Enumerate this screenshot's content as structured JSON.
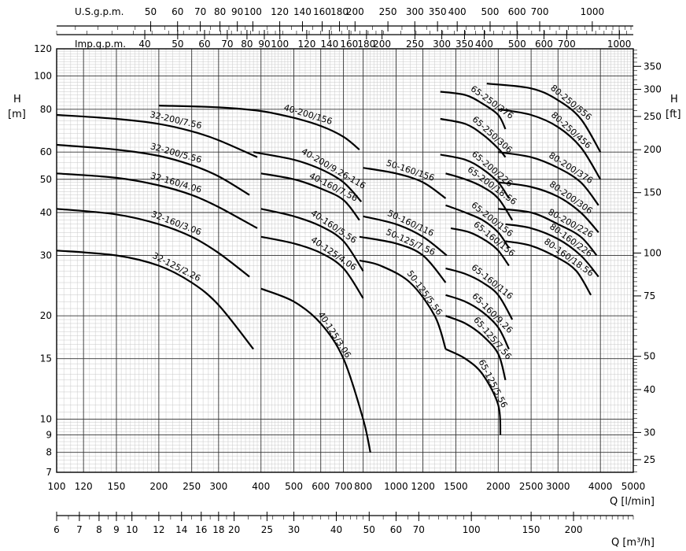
{
  "chart_data": {
    "type": "line",
    "title": "Pump performance curves",
    "x_axis": {
      "label": "Q [l/min]",
      "scale": "log",
      "range": [
        100,
        5000
      ],
      "ticks": [
        100,
        120,
        150,
        200,
        250,
        300,
        400,
        500,
        600,
        700,
        800,
        1000,
        1200,
        1500,
        2000,
        2500,
        3000,
        4000,
        5000
      ]
    },
    "x_axis_m3h": {
      "label": "Q [m³/h]",
      "ticks": [
        6,
        7,
        8,
        9,
        10,
        12,
        14,
        16,
        18,
        20,
        25,
        30,
        40,
        50,
        60,
        70,
        100,
        150,
        200
      ]
    },
    "x_axis_usgpm": {
      "label": "U.S.g.p.m.",
      "ticks": [
        50,
        60,
        70,
        80,
        90,
        100,
        120,
        140,
        160,
        180,
        200,
        250,
        300,
        350,
        400,
        500,
        600,
        700,
        1000
      ]
    },
    "x_axis_impgpm": {
      "label": "Imp.g.p.m.",
      "ticks": [
        40,
        50,
        60,
        70,
        80,
        90,
        100,
        120,
        140,
        160,
        180,
        200,
        250,
        300,
        350,
        400,
        500,
        600,
        700,
        1000
      ]
    },
    "y_axis": {
      "label": "H",
      "unit": "[m]",
      "scale": "log",
      "range": [
        7,
        120
      ],
      "ticks": [
        7,
        8,
        9,
        10,
        15,
        20,
        30,
        40,
        50,
        60,
        80,
        100,
        120
      ]
    },
    "y_axis_ft": {
      "label": "H",
      "unit": "[ft]",
      "ticks": [
        25,
        30,
        40,
        50,
        75,
        100,
        150,
        200,
        250,
        300,
        350
      ]
    },
    "grid": true,
    "series": [
      {
        "name": "32-200/7.56",
        "q": [
          100,
          150,
          200,
          250,
          300,
          390
        ],
        "h": [
          77,
          75,
          72.5,
          69,
          65,
          58
        ]
      },
      {
        "name": "32-200/5.56",
        "q": [
          100,
          150,
          200,
          250,
          300,
          370
        ],
        "h": [
          63,
          61,
          58.5,
          55,
          51,
          45
        ]
      },
      {
        "name": "32-160/4.06",
        "q": [
          100,
          150,
          200,
          250,
          300,
          390
        ],
        "h": [
          52,
          50.5,
          48,
          45,
          41.5,
          36
        ]
      },
      {
        "name": "32-160/3.06",
        "q": [
          100,
          150,
          200,
          250,
          300,
          370
        ],
        "h": [
          41,
          39.5,
          37,
          34,
          30.5,
          26
        ]
      },
      {
        "name": "32-125/2.26",
        "q": [
          100,
          150,
          200,
          250,
          300,
          380
        ],
        "h": [
          31,
          30,
          28,
          25,
          21.5,
          16
        ]
      },
      {
        "name": "40-200/156",
        "q": [
          200,
          300,
          400,
          500,
          600,
          700,
          780
        ],
        "h": [
          82,
          81,
          79,
          75.5,
          71.5,
          66.5,
          61
        ]
      },
      {
        "name": "40-200/9.26-116",
        "q": [
          380,
          500,
          600,
          700,
          790
        ],
        "h": [
          60,
          57,
          53.5,
          49,
          43
        ]
      },
      {
        "name": "40-160/7.56",
        "q": [
          400,
          500,
          600,
          700,
          780
        ],
        "h": [
          52,
          50,
          47,
          43.5,
          38
        ]
      },
      {
        "name": "40-160/5.56",
        "q": [
          400,
          500,
          600,
          700,
          800
        ],
        "h": [
          41,
          39,
          36.5,
          33,
          27
        ]
      },
      {
        "name": "40-125/4.06",
        "q": [
          400,
          500,
          600,
          700,
          800
        ],
        "h": [
          34,
          32.5,
          30.5,
          27.5,
          22.5
        ]
      },
      {
        "name": "40-125/3.06",
        "q": [
          400,
          500,
          600,
          700,
          800,
          840
        ],
        "h": [
          24,
          22,
          19,
          15,
          10,
          8
        ]
      },
      {
        "name": "50-160/156",
        "q": [
          800,
          1000,
          1200,
          1400
        ],
        "h": [
          54,
          52,
          49,
          44
        ]
      },
      {
        "name": "50-160/116",
        "q": [
          800,
          1000,
          1200,
          1410
        ],
        "h": [
          39,
          37,
          34,
          30
        ]
      },
      {
        "name": "50-125/7.56",
        "q": [
          780,
          1000,
          1200,
          1400
        ],
        "h": [
          34,
          32.5,
          30,
          25
        ]
      },
      {
        "name": "50-125/5.56",
        "q": [
          780,
          900,
          1100,
          1300,
          1400
        ],
        "h": [
          29,
          28,
          25,
          20,
          16
        ]
      },
      {
        "name": "65-250/376",
        "q": [
          1350,
          1600,
          1800,
          2000,
          2100
        ],
        "h": [
          90,
          88,
          83,
          77,
          70
        ]
      },
      {
        "name": "65-250/306",
        "q": [
          1350,
          1600,
          1800,
          2000,
          2100
        ],
        "h": [
          75,
          72.5,
          67.5,
          61.5,
          58
        ]
      },
      {
        "name": "65-200/226",
        "q": [
          1350,
          1600,
          1800,
          2000,
          2150
        ],
        "h": [
          59,
          57,
          53.5,
          49,
          44
        ]
      },
      {
        "name": "65-200/18.56",
        "q": [
          1400,
          1600,
          1800,
          2000,
          2200
        ],
        "h": [
          52,
          50,
          47.5,
          44,
          38
        ]
      },
      {
        "name": "65-200/156",
        "q": [
          1400,
          1600,
          1800,
          2000,
          2150
        ],
        "h": [
          42,
          40,
          38,
          35,
          31.5
        ]
      },
      {
        "name": "65-160/156",
        "q": [
          1450,
          1650,
          1850,
          2000,
          2150
        ],
        "h": [
          36,
          35,
          33,
          31,
          28
        ]
      },
      {
        "name": "65-160/116",
        "q": [
          1400,
          1600,
          1800,
          2000,
          2200
        ],
        "h": [
          27.5,
          26.5,
          25,
          23,
          19.5
        ]
      },
      {
        "name": "65-160/9.26",
        "q": [
          1400,
          1600,
          1800,
          2000,
          2150
        ],
        "h": [
          23,
          22,
          20.5,
          18.5,
          16
        ]
      },
      {
        "name": "65-125/7.56",
        "q": [
          1400,
          1600,
          1800,
          2000,
          2100
        ],
        "h": [
          20,
          19,
          17.5,
          15.5,
          13
        ]
      },
      {
        "name": "65-125/5.56",
        "q": [
          1400,
          1600,
          1800,
          2000,
          2030
        ],
        "h": [
          16,
          15,
          13.5,
          11,
          9
        ]
      },
      {
        "name": "80-250/556",
        "q": [
          1850,
          2500,
          3000,
          3500,
          4000
        ],
        "h": [
          95,
          92,
          85,
          75,
          60
        ]
      },
      {
        "name": "80-250/456",
        "q": [
          2000,
          2500,
          3000,
          3500,
          4000
        ],
        "h": [
          80,
          77,
          71,
          62,
          50
        ]
      },
      {
        "name": "80-200/376",
        "q": [
          2000,
          2500,
          3000,
          3500,
          3950
        ],
        "h": [
          60,
          58,
          54,
          49,
          42
        ]
      },
      {
        "name": "80-200/306",
        "q": [
          2000,
          2500,
          3000,
          3500,
          3950
        ],
        "h": [
          49,
          47.5,
          44.5,
          40,
          35
        ]
      },
      {
        "name": "80-200/226",
        "q": [
          2000,
          2500,
          3000,
          3500,
          3900
        ],
        "h": [
          41,
          40,
          37,
          34,
          30
        ]
      },
      {
        "name": "80-160/226",
        "q": [
          2100,
          2500,
          3000,
          3500,
          3950
        ],
        "h": [
          37,
          36,
          33.5,
          30,
          26
        ]
      },
      {
        "name": "80-160/18.56",
        "q": [
          2100,
          2500,
          3000,
          3400,
          3750
        ],
        "h": [
          33,
          32,
          29.5,
          27,
          23
        ]
      }
    ]
  }
}
